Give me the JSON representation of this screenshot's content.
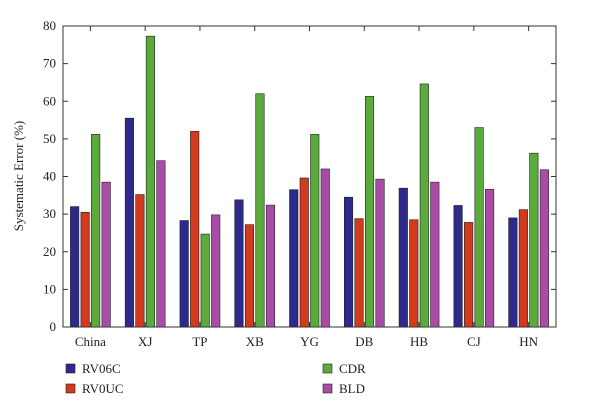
{
  "chart_data": {
    "type": "bar",
    "categories": [
      "China",
      "XJ",
      "TP",
      "XB",
      "YG",
      "DB",
      "HB",
      "CJ",
      "HN"
    ],
    "ylabel": "Systematic Error (%)",
    "xlabel": "",
    "ylim": [
      0,
      80
    ],
    "yticks": [
      0,
      10,
      20,
      30,
      40,
      50,
      60,
      70,
      80
    ],
    "grid": false,
    "legend_position": "bottom",
    "series": [
      {
        "name": "RV06C",
        "color": "#2e2a8c",
        "values": [
          32.0,
          55.5,
          28.3,
          33.8,
          36.5,
          34.5,
          36.9,
          32.3,
          29.0
        ]
      },
      {
        "name": "RV0UC",
        "color": "#d23a1e",
        "values": [
          30.5,
          35.2,
          52.0,
          27.2,
          39.6,
          28.8,
          28.5,
          27.8,
          31.2
        ]
      },
      {
        "name": "CDR",
        "color": "#5aaa3c",
        "values": [
          51.2,
          77.3,
          24.7,
          62.0,
          51.2,
          61.3,
          64.6,
          53.0,
          46.2
        ]
      },
      {
        "name": "BLD",
        "color": "#a84ca6",
        "values": [
          38.5,
          44.2,
          29.8,
          32.4,
          42.0,
          39.3,
          38.5,
          36.6,
          41.8
        ]
      }
    ]
  }
}
